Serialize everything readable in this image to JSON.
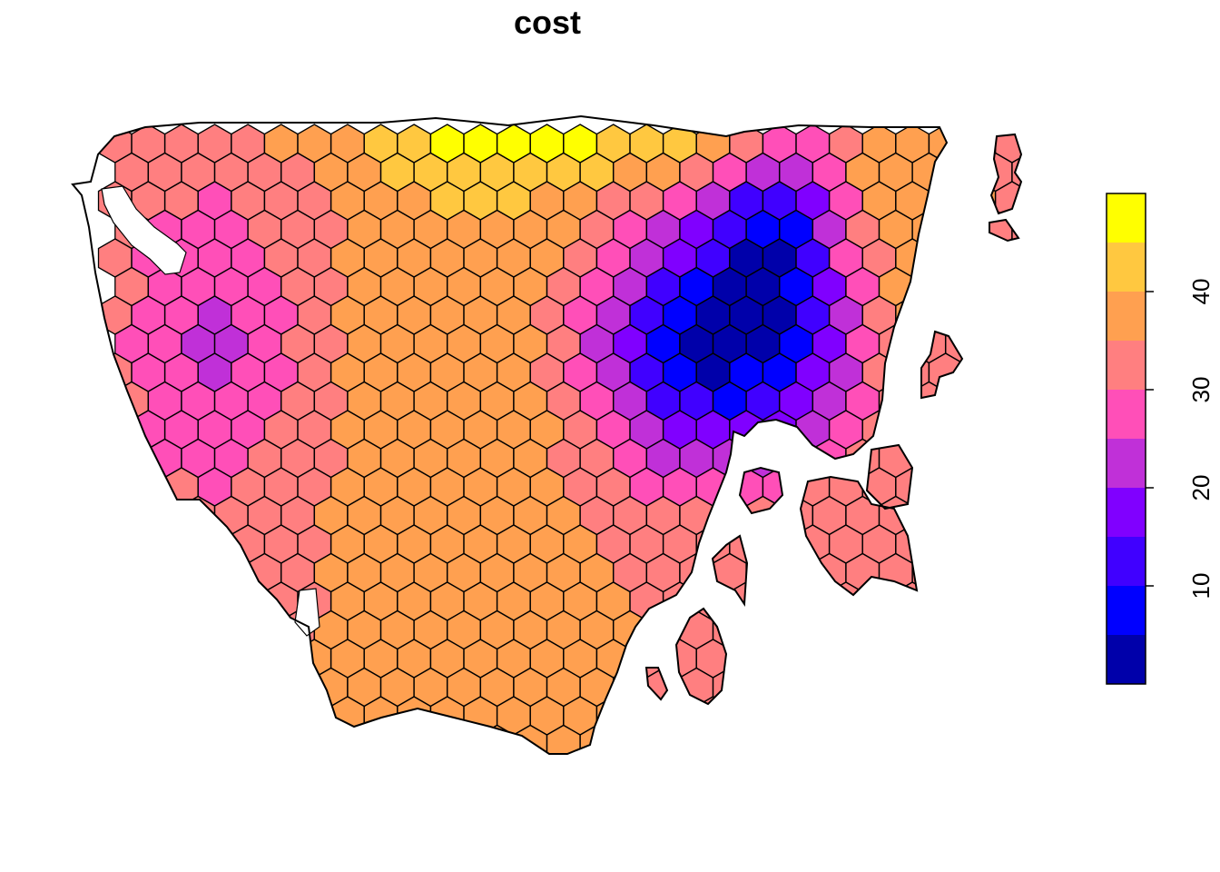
{
  "title": "cost",
  "legend": {
    "tick_labels": [
      "10",
      "20",
      "30",
      "40"
    ],
    "tick_values": [
      10,
      20,
      30,
      40
    ],
    "range": [
      0,
      50
    ],
    "bins": [
      {
        "from": 0,
        "to": 5,
        "color": "#0000AA"
      },
      {
        "from": 5,
        "to": 10,
        "color": "#0000FF"
      },
      {
        "from": 10,
        "to": 15,
        "color": "#4000FF"
      },
      {
        "from": 15,
        "to": 20,
        "color": "#8000FF"
      },
      {
        "from": 20,
        "to": 25,
        "color": "#C030D8"
      },
      {
        "from": 25,
        "to": 30,
        "color": "#FF4FB8"
      },
      {
        "from": 30,
        "to": 35,
        "color": "#FF7F80"
      },
      {
        "from": 35,
        "to": 40,
        "color": "#FFA050"
      },
      {
        "from": 40,
        "to": 45,
        "color": "#FFC840"
      },
      {
        "from": 45,
        "to": 50,
        "color": "#FFFF00"
      }
    ]
  },
  "chart_data": {
    "type": "heatmap",
    "title": "cost",
    "description_of_values": "hexagonal grid cells colored by cost value; legend placed right",
    "legend_position": "right",
    "value_range": [
      0,
      50
    ]
  }
}
